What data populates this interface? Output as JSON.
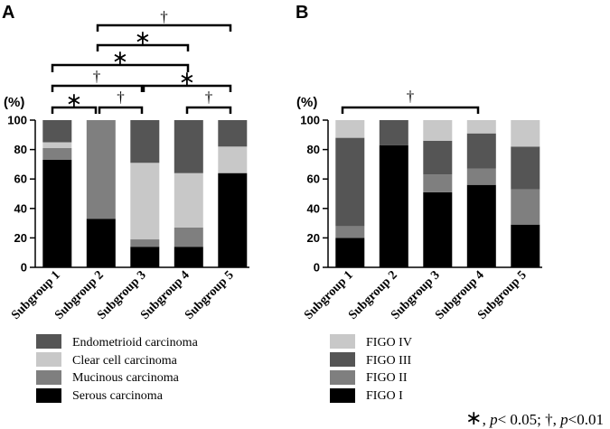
{
  "chart_data": [
    {
      "panel": "A",
      "type": "bar",
      "stacked": true,
      "ylabel": "(%)",
      "ylim": [
        0,
        100
      ],
      "yticks": [
        "0",
        "20",
        "40",
        "60",
        "80",
        "100"
      ],
      "categories": [
        "Subgroup 1",
        "Subgroup 2",
        "Subgroup 3",
        "Subgroup 4",
        "Subgroup 5"
      ],
      "series": [
        {
          "name": "Serous carcinoma",
          "color": "#000000",
          "values": [
            73,
            33,
            14,
            14,
            64
          ]
        },
        {
          "name": "Mucinous carcinoma",
          "color": "#7f7f7f",
          "values": [
            8,
            67,
            5,
            13,
            0
          ]
        },
        {
          "name": "Clear cell carcinoma",
          "color": "#c8c8c8",
          "values": [
            4,
            0,
            52,
            37,
            18
          ]
        },
        {
          "name": "Endometrioid carcinoma",
          "color": "#555555",
          "values": [
            15,
            0,
            29,
            36,
            18
          ]
        }
      ],
      "legend": [
        "Endometrioid carcinoma",
        "Clear cell carcinoma",
        "Mucinous carcinoma",
        "Serous carcinoma"
      ],
      "comparisons": [
        {
          "from": 2,
          "to": 5,
          "mark": "†"
        },
        {
          "from": 2,
          "to": 4,
          "mark": "∗"
        },
        {
          "from": 1,
          "to": 4,
          "mark": "∗"
        },
        {
          "from": 1,
          "to": 3,
          "mark": "†"
        },
        {
          "from": 1,
          "to": 2,
          "mark": "∗"
        },
        {
          "from": 2,
          "to": 3,
          "mark": "†"
        },
        {
          "from": 3,
          "to": 5,
          "mark": "∗"
        },
        {
          "from": 4,
          "to": 5,
          "mark": "†"
        }
      ]
    },
    {
      "panel": "B",
      "type": "bar",
      "stacked": true,
      "ylabel": "(%)",
      "ylim": [
        0,
        100
      ],
      "yticks": [
        "0",
        "20",
        "40",
        "60",
        "80",
        "100"
      ],
      "categories": [
        "Subgroup 1",
        "Subgroup 2",
        "Subgroup 3",
        "Subgroup 4",
        "Subgroup 5"
      ],
      "series": [
        {
          "name": "FIGO I",
          "color": "#000000",
          "values": [
            20,
            83,
            51,
            56,
            29
          ]
        },
        {
          "name": "FIGO II",
          "color": "#7f7f7f",
          "values": [
            8,
            0,
            12,
            11,
            24
          ]
        },
        {
          "name": "FIGO III",
          "color": "#555555",
          "values": [
            60,
            17,
            23,
            24,
            29
          ]
        },
        {
          "name": "FIGO IV",
          "color": "#c8c8c8",
          "values": [
            12,
            0,
            14,
            9,
            18
          ]
        }
      ],
      "legend": [
        "FIGO IV",
        "FIGO III",
        "FIGO II",
        "FIGO I"
      ],
      "comparisons": [
        {
          "from": 1,
          "to": 4,
          "mark": "†"
        }
      ]
    }
  ],
  "footnote": {
    "sig_mark": "∗",
    "sep1": ", ",
    "p1": "p",
    "rel1": "< 0.05; ",
    "dag_mark": "†",
    "sep2": ", ",
    "p2": "p",
    "rel2": "<0.01"
  }
}
